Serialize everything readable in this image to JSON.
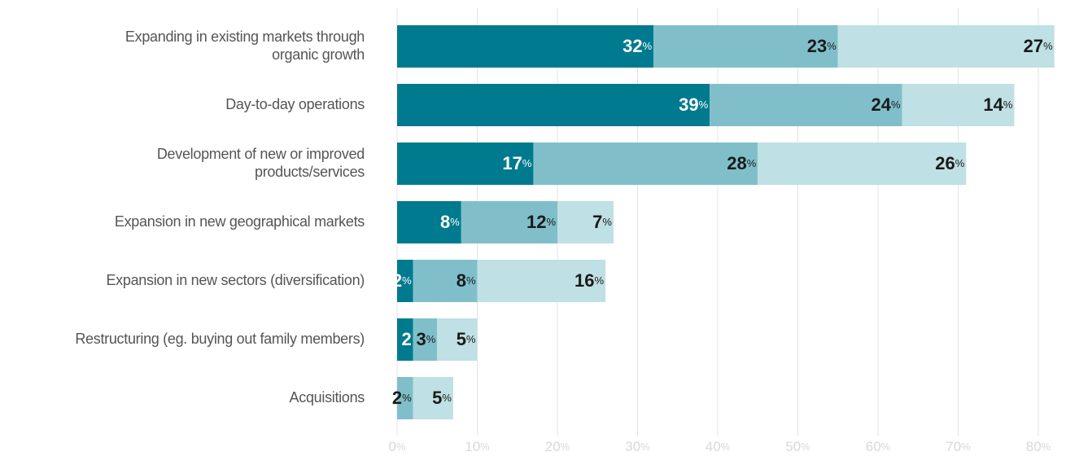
{
  "chart_data": {
    "type": "stacked-bar-horizontal",
    "categories": [
      "Expanding in existing markets through\norganic growth",
      "Day-to-day operations",
      "Development of new or improved\nproducts/services",
      "Expansion in new geographical markets",
      "Expansion in new sectors (diversification)",
      "Restructuring (eg. buying out family members)",
      "Acquisitions"
    ],
    "series": [
      {
        "color": "#007a8e",
        "values": [
          32,
          39,
          17,
          8,
          2,
          2,
          null
        ],
        "value_labels": [
          "32%",
          "39%",
          "17%",
          "8%",
          "2%",
          "2",
          null
        ]
      },
      {
        "color": "#80bfca",
        "values": [
          23,
          24,
          28,
          12,
          8,
          3,
          2
        ],
        "value_labels": [
          "23%",
          "24%",
          "28%",
          "12%",
          "8%",
          "3%",
          "2%"
        ]
      },
      {
        "color": "#bfe0e4",
        "values": [
          27,
          14,
          26,
          7,
          16,
          5,
          5
        ],
        "value_labels": [
          "27%",
          "14%",
          "26%",
          "7%",
          "16%",
          "5%",
          "5%"
        ]
      }
    ],
    "xlim": [
      0,
      82
    ],
    "xticks": [
      {
        "value": 0,
        "label": "0%"
      },
      {
        "value": 10,
        "label": "10%"
      },
      {
        "value": 20,
        "label": "20%"
      },
      {
        "value": 30,
        "label": "30%"
      },
      {
        "value": 40,
        "label": "40%"
      },
      {
        "value": 50,
        "label": "50%"
      },
      {
        "value": 60,
        "label": "60%"
      },
      {
        "value": 70,
        "label": "70%"
      },
      {
        "value": 80,
        "label": "80%"
      }
    ],
    "grid": true
  }
}
